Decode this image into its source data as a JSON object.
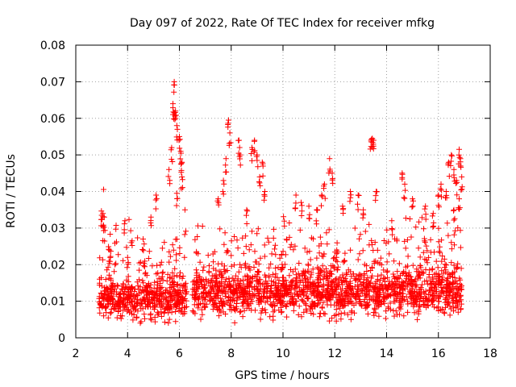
{
  "chart_data": {
    "type": "scatter",
    "title": "Day 097 of 2022, Rate Of TEC Index for receiver mfkg",
    "xlabel": "GPS time / hours",
    "ylabel": "ROTI / TECUs",
    "xlim": [
      2,
      18
    ],
    "ylim": [
      0,
      0.08
    ],
    "x_ticks": [
      2,
      4,
      6,
      8,
      10,
      12,
      14,
      16,
      18
    ],
    "x_tick_labels": [
      "2",
      "4",
      "6",
      "8",
      "10",
      "12",
      "14",
      "16",
      "18"
    ],
    "y_ticks": [
      0,
      0.01,
      0.02,
      0.03,
      0.04,
      0.05,
      0.06,
      0.07,
      0.08
    ],
    "y_tick_labels": [
      "0",
      "0.01",
      "0.02",
      "0.03",
      "0.04",
      "0.05",
      "0.06",
      "0.07",
      "0.08"
    ],
    "grid": true,
    "marker": "plus",
    "color": "#ff0000",
    "series": [
      {
        "name": "ROTI",
        "segments": [
          {
            "x_range": [
              2.9,
              6.3
            ],
            "base": 0.0105,
            "spread": 0.0045
          },
          {
            "x_range": [
              6.5,
              16.9
            ],
            "base": 0.0125,
            "spread": 0.0055
          }
        ],
        "points": [
          [
            3.0,
            0.0335
          ],
          [
            3.05,
            0.034
          ],
          [
            3.1,
            0.033
          ],
          [
            3.3,
            0.024
          ],
          [
            3.9,
            0.032
          ],
          [
            4.0,
            0.022
          ],
          [
            4.6,
            0.027
          ],
          [
            4.9,
            0.033
          ],
          [
            5.1,
            0.039
          ],
          [
            5.6,
            0.046
          ],
          [
            5.7,
            0.052
          ],
          [
            5.75,
            0.064
          ],
          [
            5.8,
            0.07
          ],
          [
            5.8,
            0.0615
          ],
          [
            5.85,
            0.062
          ],
          [
            5.9,
            0.058
          ],
          [
            6.0,
            0.055
          ],
          [
            6.05,
            0.051
          ],
          [
            6.1,
            0.048
          ],
          [
            6.1,
            0.044
          ],
          [
            5.9,
            0.0395
          ],
          [
            7.5,
            0.038
          ],
          [
            7.7,
            0.043
          ],
          [
            7.8,
            0.049
          ],
          [
            7.9,
            0.0595
          ],
          [
            7.95,
            0.056
          ],
          [
            8.3,
            0.054
          ],
          [
            8.35,
            0.05
          ],
          [
            8.6,
            0.035
          ],
          [
            8.8,
            0.052
          ],
          [
            8.9,
            0.054
          ],
          [
            9.0,
            0.05
          ],
          [
            9.1,
            0.044
          ],
          [
            9.2,
            0.048
          ],
          [
            9.3,
            0.04
          ],
          [
            10.5,
            0.039
          ],
          [
            10.7,
            0.037
          ],
          [
            11.0,
            0.036
          ],
          [
            11.3,
            0.035
          ],
          [
            11.5,
            0.039
          ],
          [
            11.6,
            0.042
          ],
          [
            11.8,
            0.049
          ],
          [
            11.9,
            0.045
          ],
          [
            12.3,
            0.036
          ],
          [
            12.6,
            0.04
          ],
          [
            12.9,
            0.039
          ],
          [
            13.1,
            0.035
          ],
          [
            13.4,
            0.054
          ],
          [
            13.45,
            0.0545
          ],
          [
            13.5,
            0.054
          ],
          [
            13.6,
            0.04
          ],
          [
            14.2,
            0.032
          ],
          [
            14.6,
            0.045
          ],
          [
            14.7,
            0.042
          ],
          [
            15.0,
            0.038
          ],
          [
            15.5,
            0.036
          ],
          [
            15.8,
            0.034
          ],
          [
            16.0,
            0.039
          ],
          [
            16.1,
            0.042
          ],
          [
            16.3,
            0.04
          ],
          [
            16.4,
            0.048
          ],
          [
            16.5,
            0.05
          ],
          [
            16.6,
            0.046
          ],
          [
            16.7,
            0.043
          ],
          [
            16.8,
            0.0515
          ],
          [
            16.85,
            0.049
          ],
          [
            16.9,
            0.044
          ],
          [
            16.8,
            0.038
          ],
          [
            16.6,
            0.035
          ]
        ]
      }
    ]
  }
}
